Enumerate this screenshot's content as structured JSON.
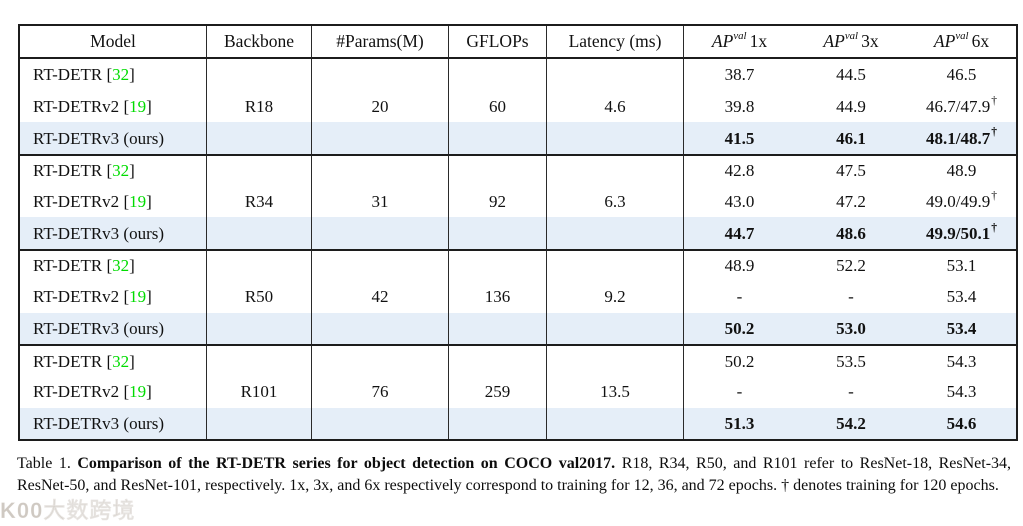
{
  "table": {
    "columns": [
      "Model",
      "Backbone",
      "#Params(M)",
      "GFLOPs",
      "Latency (ms)"
    ],
    "ap_columns": [
      {
        "ap": "AP",
        "sup": "val",
        "mult": "1x"
      },
      {
        "ap": "AP",
        "sup": "val",
        "mult": "3x"
      },
      {
        "ap": "AP",
        "sup": "val",
        "mult": "6x"
      }
    ],
    "groups": [
      {
        "backbone": "R18",
        "params": "20",
        "gflops": "60",
        "latency": "4.6",
        "rows": [
          {
            "model": "RT-DETR",
            "cite": "32",
            "ap": [
              "38.7",
              "44.5",
              "46.5"
            ],
            "dagger": [
              false,
              false,
              false
            ],
            "ours": false
          },
          {
            "model": "RT-DETRv2",
            "cite": "19",
            "ap": [
              "39.8",
              "44.9",
              "46.7/47.9"
            ],
            "dagger": [
              false,
              false,
              true
            ],
            "ours": false
          },
          {
            "model": "RT-DETRv3 (ours)",
            "cite": null,
            "ap": [
              "41.5",
              "46.1",
              "48.1/48.7"
            ],
            "dagger": [
              false,
              false,
              true
            ],
            "ours": true
          }
        ]
      },
      {
        "backbone": "R34",
        "params": "31",
        "gflops": "92",
        "latency": "6.3",
        "rows": [
          {
            "model": "RT-DETR",
            "cite": "32",
            "ap": [
              "42.8",
              "47.5",
              "48.9"
            ],
            "dagger": [
              false,
              false,
              false
            ],
            "ours": false
          },
          {
            "model": "RT-DETRv2",
            "cite": "19",
            "ap": [
              "43.0",
              "47.2",
              "49.0/49.9"
            ],
            "dagger": [
              false,
              false,
              true
            ],
            "ours": false
          },
          {
            "model": "RT-DETRv3 (ours)",
            "cite": null,
            "ap": [
              "44.7",
              "48.6",
              "49.9/50.1"
            ],
            "dagger": [
              false,
              false,
              true
            ],
            "ours": true
          }
        ]
      },
      {
        "backbone": "R50",
        "params": "42",
        "gflops": "136",
        "latency": "9.2",
        "rows": [
          {
            "model": "RT-DETR",
            "cite": "32",
            "ap": [
              "48.9",
              "52.2",
              "53.1"
            ],
            "dagger": [
              false,
              false,
              false
            ],
            "ours": false
          },
          {
            "model": "RT-DETRv2",
            "cite": "19",
            "ap": [
              "-",
              "-",
              "53.4"
            ],
            "dagger": [
              false,
              false,
              false
            ],
            "ours": false
          },
          {
            "model": "RT-DETRv3 (ours)",
            "cite": null,
            "ap": [
              "50.2",
              "53.0",
              "53.4"
            ],
            "dagger": [
              false,
              false,
              false
            ],
            "ours": true
          }
        ]
      },
      {
        "backbone": "R101",
        "params": "76",
        "gflops": "259",
        "latency": "13.5",
        "rows": [
          {
            "model": "RT-DETR",
            "cite": "32",
            "ap": [
              "50.2",
              "53.5",
              "54.3"
            ],
            "dagger": [
              false,
              false,
              false
            ],
            "ours": false
          },
          {
            "model": "RT-DETRv2",
            "cite": "19",
            "ap": [
              "-",
              "-",
              "54.3"
            ],
            "dagger": [
              false,
              false,
              false
            ],
            "ours": false
          },
          {
            "model": "RT-DETRv3 (ours)",
            "cite": null,
            "ap": [
              "51.3",
              "54.2",
              "54.6"
            ],
            "dagger": [
              false,
              false,
              false
            ],
            "ours": true
          }
        ]
      }
    ]
  },
  "caption": {
    "label": "Table 1.",
    "bold": "Comparison of the RT-DETR series for object detection on COCO val2017.",
    "rest": "R18, R34, R50, and R101 refer to ResNet-18, ResNet-34, ResNet-50, and ResNet-101, respectively. 1x, 3x, and 6x respectively correspond to training for 12, 36, and 72 epochs. † denotes training for 120 epochs."
  },
  "watermark": {
    "text": "K00大数跨境"
  },
  "colors": {
    "highlight": "#e5eef8",
    "cite_green": "#00dc00",
    "rule": "#1c1c1c"
  }
}
